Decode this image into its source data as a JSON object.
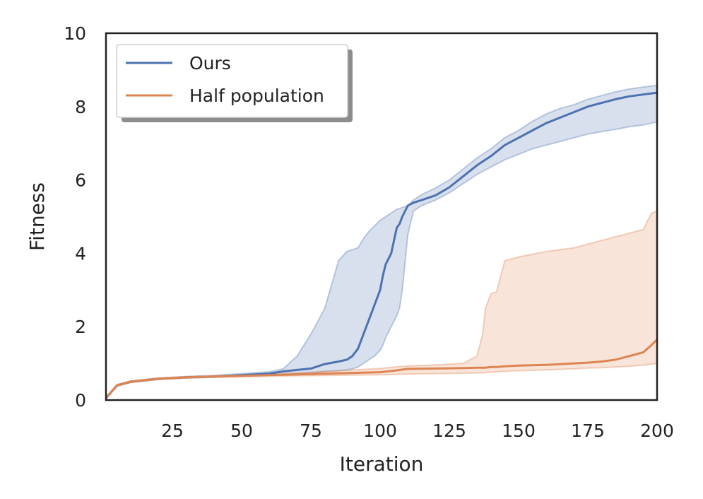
{
  "chart_data": {
    "type": "line",
    "title": "",
    "xlabel": "Iteration",
    "ylabel": "Fitness",
    "xlim": [
      1,
      200
    ],
    "ylim": [
      0,
      10
    ],
    "xticks": [
      25,
      50,
      75,
      100,
      125,
      150,
      175,
      200
    ],
    "xtick_labels": [
      "25",
      "50",
      "75",
      "100",
      "125",
      "150",
      "175",
      "200"
    ],
    "yticks": [
      0,
      2,
      4,
      6,
      8,
      10
    ],
    "ytick_labels": [
      "0",
      "2",
      "4",
      "6",
      "8",
      "10"
    ],
    "grid": false,
    "legend_position": "top-left",
    "series": [
      {
        "name": "Ours",
        "color": "#4c72b0",
        "band_alpha": 0.22,
        "x": [
          1,
          5,
          10,
          20,
          30,
          40,
          50,
          60,
          65,
          70,
          75,
          80,
          85,
          88,
          90,
          92,
          94,
          96,
          98,
          100,
          101,
          102,
          104,
          106,
          107,
          108,
          110,
          112,
          115,
          120,
          125,
          130,
          135,
          140,
          145,
          150,
          155,
          160,
          165,
          170,
          175,
          180,
          185,
          190,
          195,
          200
        ],
        "y": [
          0.05,
          0.4,
          0.5,
          0.58,
          0.62,
          0.64,
          0.68,
          0.72,
          0.78,
          0.82,
          0.86,
          0.98,
          1.05,
          1.1,
          1.2,
          1.4,
          1.8,
          2.2,
          2.6,
          3.0,
          3.4,
          3.7,
          4.0,
          4.7,
          4.8,
          5.0,
          5.3,
          5.38,
          5.45,
          5.58,
          5.8,
          6.1,
          6.4,
          6.65,
          6.95,
          7.15,
          7.35,
          7.55,
          7.7,
          7.85,
          8.0,
          8.1,
          8.2,
          8.28,
          8.33,
          8.38
        ],
        "upper": [
          0.08,
          0.42,
          0.52,
          0.6,
          0.64,
          0.67,
          0.72,
          0.77,
          0.85,
          1.2,
          1.8,
          2.5,
          3.8,
          4.05,
          4.1,
          4.15,
          4.4,
          4.6,
          4.75,
          4.9,
          4.95,
          5.0,
          5.1,
          5.2,
          5.22,
          5.25,
          5.3,
          5.45,
          5.6,
          5.78,
          6.0,
          6.3,
          6.6,
          6.85,
          7.15,
          7.35,
          7.6,
          7.8,
          7.95,
          8.05,
          8.2,
          8.3,
          8.4,
          8.48,
          8.53,
          8.58
        ],
        "lower": [
          0.03,
          0.38,
          0.48,
          0.56,
          0.6,
          0.62,
          0.65,
          0.68,
          0.7,
          0.72,
          0.74,
          0.78,
          0.8,
          0.82,
          0.85,
          0.9,
          1.0,
          1.1,
          1.2,
          1.35,
          1.5,
          1.7,
          2.0,
          2.3,
          2.5,
          3.0,
          4.5,
          5.15,
          5.3,
          5.45,
          5.65,
          5.9,
          6.15,
          6.35,
          6.55,
          6.7,
          6.85,
          6.95,
          7.05,
          7.15,
          7.25,
          7.32,
          7.38,
          7.45,
          7.5,
          7.58
        ]
      },
      {
        "name": "Half population",
        "color": "#dd8452",
        "band_alpha": 0.22,
        "x": [
          1,
          5,
          10,
          20,
          30,
          40,
          50,
          60,
          70,
          80,
          90,
          100,
          105,
          110,
          120,
          130,
          135,
          137,
          138,
          140,
          142,
          145,
          150,
          160,
          170,
          175,
          180,
          185,
          190,
          195,
          198,
          200
        ],
        "y": [
          0.05,
          0.4,
          0.5,
          0.58,
          0.62,
          0.64,
          0.66,
          0.68,
          0.7,
          0.72,
          0.74,
          0.76,
          0.8,
          0.85,
          0.86,
          0.87,
          0.88,
          0.88,
          0.88,
          0.9,
          0.9,
          0.92,
          0.94,
          0.96,
          1.0,
          1.02,
          1.05,
          1.1,
          1.2,
          1.3,
          1.5,
          1.65
        ],
        "upper": [
          0.08,
          0.42,
          0.52,
          0.6,
          0.64,
          0.66,
          0.69,
          0.71,
          0.74,
          0.78,
          0.82,
          0.86,
          0.9,
          0.93,
          0.96,
          1.0,
          1.2,
          1.8,
          2.5,
          2.9,
          2.95,
          3.8,
          3.9,
          4.05,
          4.15,
          4.25,
          4.35,
          4.45,
          4.55,
          4.65,
          5.1,
          5.15
        ],
        "lower": [
          0.03,
          0.38,
          0.48,
          0.56,
          0.6,
          0.62,
          0.63,
          0.65,
          0.66,
          0.67,
          0.68,
          0.69,
          0.7,
          0.71,
          0.72,
          0.73,
          0.74,
          0.74,
          0.75,
          0.76,
          0.77,
          0.78,
          0.8,
          0.82,
          0.85,
          0.87,
          0.88,
          0.9,
          0.92,
          0.95,
          0.98,
          1.0
        ]
      }
    ]
  }
}
